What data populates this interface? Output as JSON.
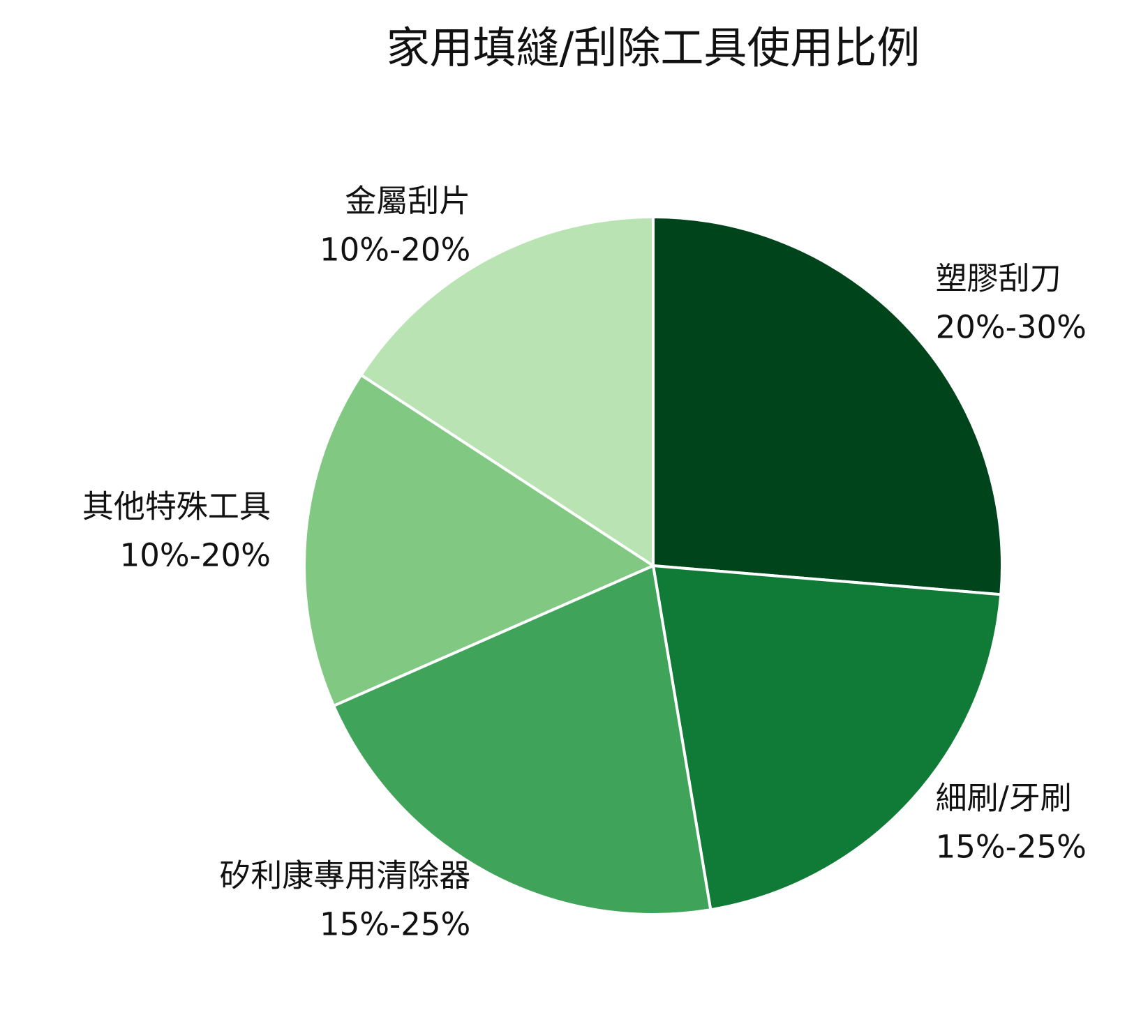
{
  "chart_data": {
    "type": "pie",
    "title": "家用填縫/刮除工具使用比例",
    "categories": [
      "塑膠刮刀",
      "細刷/牙刷",
      "矽利康專用清除器",
      "其他特殊工具",
      "金屬刮片"
    ],
    "values": [
      25,
      20,
      20,
      15,
      15
    ],
    "value_labels": [
      "20%-30%",
      "15%-25%",
      "15%-25%",
      "10%-20%",
      "10%-20%"
    ],
    "colors": [
      "#00441b",
      "#107a37",
      "#3fa45a",
      "#81c882",
      "#b9e3b3"
    ]
  }
}
